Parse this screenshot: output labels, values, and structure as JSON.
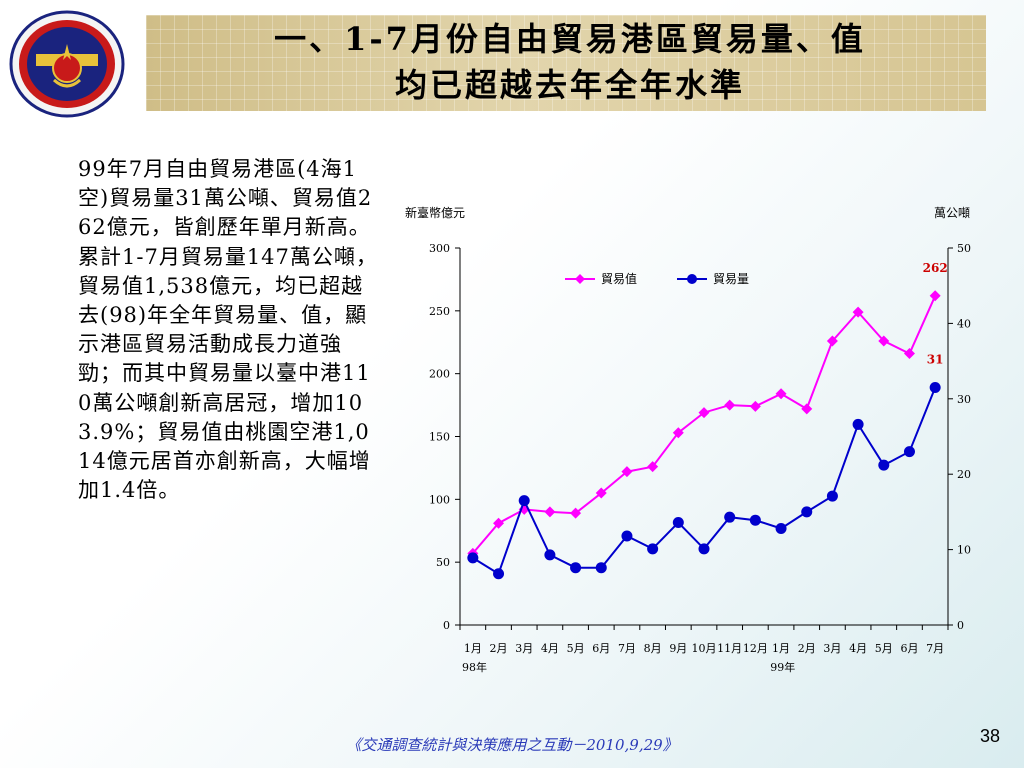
{
  "slide": {
    "title_line1": "一、1-7月份自由貿易港區貿易量、值",
    "title_line2": "均已超越去年全年水準",
    "body": "99年7月自由貿易港區(4海1空)貿易量31萬公噸、貿易值262億元，皆創歷年單月新高。累計1-7月貿易量147萬公噸，貿易值1,538億元，均已超越去(98)年全年貿易量、值，顯示港區貿易活動成長力道強勁；而其中貿易量以臺中港110萬公噸創新高居冠，增加103.9%；貿易值由桃園空港1,014億元居首亦創新高，大幅增加1.4倍。",
    "footer": "《交通調查統計與決策應用之互動－2010,9,29》",
    "page_number": "38"
  },
  "colors": {
    "value_series": "#ff00ff",
    "volume_series": "#0000cc",
    "annotation": "#cc0000",
    "footer_text": "#2a3ab8"
  },
  "chart_data": {
    "type": "line",
    "left_axis_unit": "新臺幣億元",
    "right_axis_unit": "萬公噸",
    "categories": [
      "1月",
      "2月",
      "3月",
      "4月",
      "5月",
      "6月",
      "7月",
      "8月",
      "9月",
      "10月",
      "11月",
      "12月",
      "1月",
      "2月",
      "3月",
      "4月",
      "5月",
      "6月",
      "7月"
    ],
    "year_labels": [
      {
        "index": 0,
        "label": "98年"
      },
      {
        "index": 12,
        "label": "99年"
      }
    ],
    "y_left": {
      "min": 0,
      "max": 300,
      "ticks": [
        0,
        50,
        100,
        150,
        200,
        250,
        300
      ]
    },
    "y_right": {
      "min": 0,
      "max": 50,
      "ticks": [
        0,
        10,
        20,
        30,
        40,
        50
      ]
    },
    "series": [
      {
        "name": "貿易值",
        "axis": "left",
        "marker": "diamond",
        "values": [
          57,
          81,
          92,
          90,
          89,
          105,
          122,
          126,
          153,
          169,
          175,
          174,
          184,
          172,
          226,
          249,
          226,
          216,
          262
        ]
      },
      {
        "name": "貿易量",
        "axis": "right",
        "marker": "circle",
        "values": [
          8.9,
          6.8,
          16.5,
          9.3,
          7.6,
          7.6,
          11.8,
          10.1,
          13.6,
          10.1,
          14.3,
          13.9,
          12.8,
          15.0,
          17.1,
          26.6,
          21.2,
          23.0,
          31.5
        ]
      }
    ],
    "annotations": [
      {
        "series": "貿易值",
        "index": 18,
        "text": "262"
      },
      {
        "series": "貿易量",
        "index": 18,
        "text": "31"
      }
    ],
    "legend_position": "top-left",
    "grid": false
  }
}
